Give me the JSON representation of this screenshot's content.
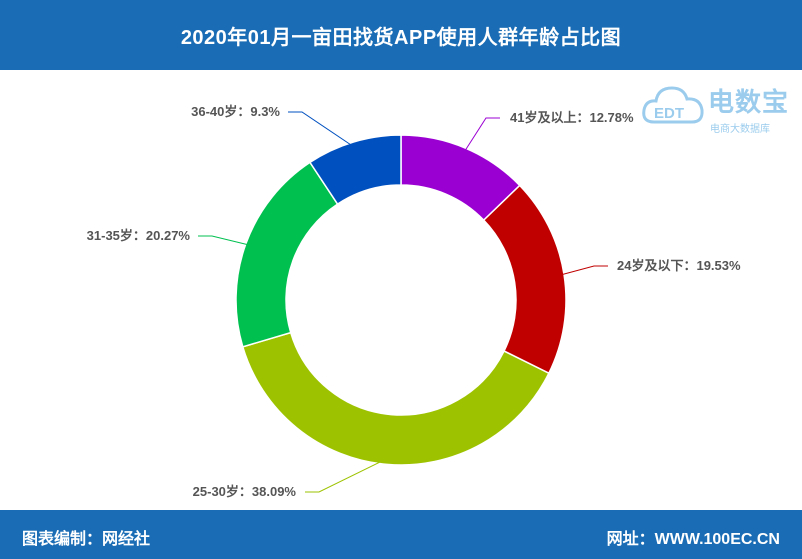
{
  "header": {
    "title": "2020年01月一亩田找货APP使用人群年龄占比图"
  },
  "footer": {
    "credit": "图表编制：网经社",
    "site": "网址：WWW.100EC.CN"
  },
  "watermark": {
    "name": "电数宝",
    "sub": "电商大数据库",
    "logo_text": "EDT"
  },
  "chart_data": {
    "type": "pie",
    "title": "2020年01月一亩田找货APP使用人群年龄占比图",
    "slices": [
      {
        "label": "41岁及以上：12.78%",
        "category": "41岁及以上",
        "value": 12.78,
        "color": "#9b00d3"
      },
      {
        "label": "24岁及以下：19.53%",
        "category": "24岁及以下",
        "value": 19.53,
        "color": "#c00000"
      },
      {
        "label": "25-30岁：38.09%",
        "category": "25-30岁",
        "value": 38.09,
        "color": "#9dc300"
      },
      {
        "label": "31-35岁：20.27%",
        "category": "31-35岁",
        "value": 20.27,
        "color": "#00c050"
      },
      {
        "label": "36-40岁：9.3%",
        "category": "36-40岁",
        "value": 9.3,
        "color": "#0050c0"
      }
    ]
  }
}
